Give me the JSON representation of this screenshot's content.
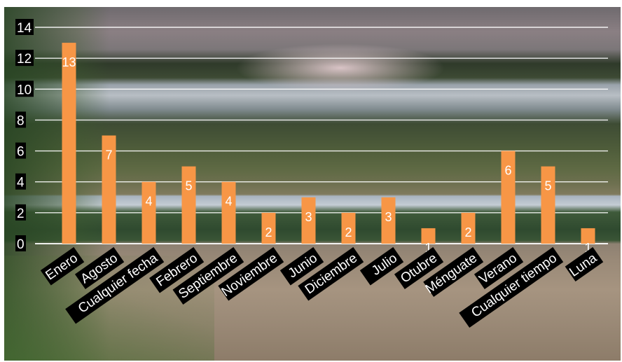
{
  "chart_data": {
    "type": "bar",
    "title": "",
    "xlabel": "",
    "ylabel": "",
    "ylim": [
      0,
      14
    ],
    "yticks": [
      0,
      2,
      4,
      6,
      8,
      10,
      12,
      14
    ],
    "grid": true,
    "legend": "none",
    "bar_color": "#f79646",
    "grid_color": "#ffffff",
    "label_background": "#000000",
    "label_color": "#ffffff",
    "categories": [
      "Enero",
      "Agosto",
      "Cualquier fecha",
      "Febrero",
      "Septiembre",
      "Noviembre",
      "Junio",
      "Diciembre",
      "Julio",
      "Otubre",
      "Ménguate",
      "Verano",
      "Cualquier tiempo",
      "Luna"
    ],
    "values": [
      13,
      7,
      4,
      5,
      4,
      2,
      3,
      2,
      3,
      1,
      2,
      6,
      5,
      1
    ]
  }
}
